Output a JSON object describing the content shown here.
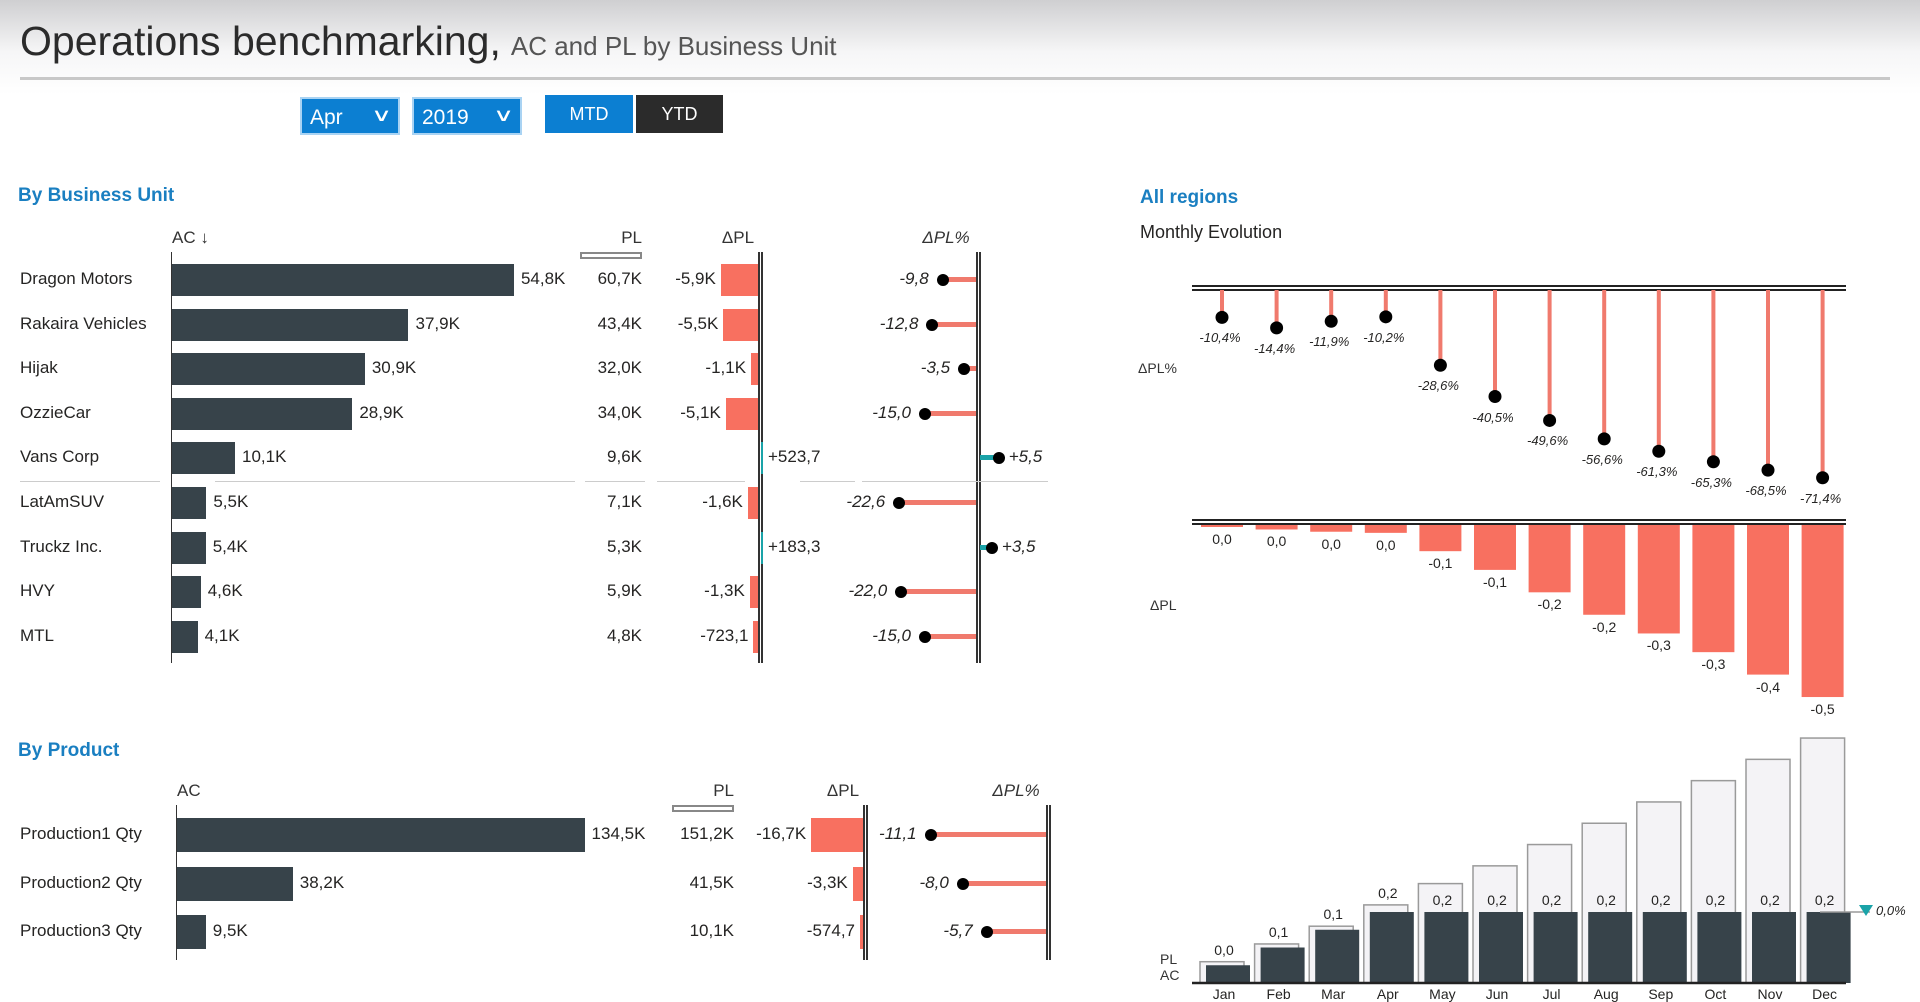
{
  "header": {
    "title": "Operations benchmarking,",
    "subtitle": "AC and PL by Business Unit"
  },
  "filters": {
    "month": {
      "value": "Apr",
      "icon": "chevron-down-icon"
    },
    "year": {
      "value": "2019",
      "icon": "chevron-down-icon"
    },
    "mtd_label": "MTD",
    "ytd_label": "YTD",
    "selected": "YTD"
  },
  "colors": {
    "accent": "#0c7fd2",
    "ac_bar": "#37434a",
    "negative": "#f87060",
    "positive": "#1aa3a8",
    "heading": "#1a7fc1"
  },
  "business_units": {
    "heading": "By Business Unit",
    "columns": {
      "ac": "AC ↓",
      "pl": "PL",
      "dpl": "ΔPL",
      "dplp": "ΔPL%"
    },
    "rows": [
      {
        "name": "Dragon Motors",
        "ac_label": "54,8K",
        "ac": 54.8,
        "pl_label": "60,7K",
        "dpl_label": "-5,9K",
        "dpl": -5.9,
        "dplp_label": "-9,8",
        "dplp": -9.8
      },
      {
        "name": "Rakaira Vehicles",
        "ac_label": "37,9K",
        "ac": 37.9,
        "pl_label": "43,4K",
        "dpl_label": "-5,5K",
        "dpl": -5.5,
        "dplp_label": "-12,8",
        "dplp": -12.8
      },
      {
        "name": "Hijak",
        "ac_label": "30,9K",
        "ac": 30.9,
        "pl_label": "32,0K",
        "dpl_label": "-1,1K",
        "dpl": -1.1,
        "dplp_label": "-3,5",
        "dplp": -3.5
      },
      {
        "name": "OzzieCar",
        "ac_label": "28,9K",
        "ac": 28.9,
        "pl_label": "34,0K",
        "dpl_label": "-5,1K",
        "dpl": -5.1,
        "dplp_label": "-15,0",
        "dplp": -15.0
      },
      {
        "name": "Vans Corp",
        "ac_label": "10,1K",
        "ac": 10.1,
        "pl_label": "9,6K",
        "dpl_label": "+523,7",
        "dpl": 0.5237,
        "dplp_label": "+5,5",
        "dplp": 5.5
      },
      {
        "name": "LatAmSUV",
        "ac_label": "5,5K",
        "ac": 5.5,
        "pl_label": "7,1K",
        "dpl_label": "-1,6K",
        "dpl": -1.6,
        "dplp_label": "-22,6",
        "dplp": -22.6
      },
      {
        "name": "Truckz Inc.",
        "ac_label": "5,4K",
        "ac": 5.4,
        "pl_label": "5,3K",
        "dpl_label": "+183,3",
        "dpl": 0.1833,
        "dplp_label": "+3,5",
        "dplp": 3.5
      },
      {
        "name": "HVY",
        "ac_label": "4,6K",
        "ac": 4.6,
        "pl_label": "5,9K",
        "dpl_label": "-1,3K",
        "dpl": -1.3,
        "dplp_label": "-22,0",
        "dplp": -22.0
      },
      {
        "name": "MTL",
        "ac_label": "4,1K",
        "ac": 4.1,
        "pl_label": "4,8K",
        "dpl_label": "-723,1",
        "dpl": -0.7231,
        "dplp_label": "-15,0",
        "dplp": -15.0
      }
    ]
  },
  "products": {
    "heading": "By Product",
    "columns": {
      "ac": "AC",
      "pl": "PL",
      "dpl": "ΔPL",
      "dplp": "ΔPL%"
    },
    "rows": [
      {
        "name": "Production1 Qty",
        "ac_label": "134,5K",
        "ac": 134.5,
        "pl_label": "151,2K",
        "dpl_label": "-16,7K",
        "dpl": -16.7,
        "dplp_label": "-11,1",
        "dplp": -11.1
      },
      {
        "name": "Production2 Qty",
        "ac_label": "38,2K",
        "ac": 38.2,
        "pl_label": "41,5K",
        "dpl_label": "-3,3K",
        "dpl": -3.3,
        "dplp_label": "-8,0",
        "dplp": -8.0
      },
      {
        "name": "Production3 Qty",
        "ac_label": "9,5K",
        "ac": 9.5,
        "pl_label": "10,1K",
        "dpl_label": "-574,7",
        "dpl": -0.5747,
        "dplp_label": "-5,7",
        "dplp": -5.7
      }
    ]
  },
  "regions": {
    "heading": "All regions",
    "subheading": "Monthly Evolution"
  },
  "chart_data": [
    {
      "type": "lollipop",
      "ylabel": "ΔPL%",
      "categories": [
        "Jan",
        "Feb",
        "Mar",
        "Apr",
        "May",
        "Jun",
        "Jul",
        "Aug",
        "Sep",
        "Oct",
        "Nov",
        "Dec"
      ],
      "values": [
        -10.4,
        -14.4,
        -11.9,
        -10.2,
        -28.6,
        -40.5,
        -49.6,
        -56.6,
        -61.3,
        -65.3,
        -68.5,
        -71.4
      ],
      "labels": [
        "-10,4%",
        "-14,4%",
        "-11,9%",
        "-10,2%",
        "-28,6%",
        "-40,5%",
        "-49,6%",
        "-56,6%",
        "-61,3%",
        "-65,3%",
        "-68,5%",
        "-71,4%"
      ]
    },
    {
      "type": "bar",
      "ylabel": "ΔPL",
      "categories": [
        "Jan",
        "Feb",
        "Mar",
        "Apr",
        "May",
        "Jun",
        "Jul",
        "Aug",
        "Sep",
        "Oct",
        "Nov",
        "Dec"
      ],
      "values": [
        -0.005,
        -0.012,
        -0.018,
        -0.021,
        -0.07,
        -0.12,
        -0.18,
        -0.24,
        -0.29,
        -0.34,
        -0.4,
        -0.46
      ],
      "labels": [
        "0,0",
        "0,0",
        "0,0",
        "0,0",
        "-0,1",
        "-0,1",
        "-0,2",
        "-0,2",
        "-0,3",
        "-0,3",
        "-0,4",
        "-0,5"
      ]
    },
    {
      "type": "bar",
      "ylabel_pl": "PL",
      "ylabel_ac": "AC",
      "categories": [
        "Jan",
        "Feb",
        "Mar",
        "Apr",
        "May",
        "Jun",
        "Jul",
        "Aug",
        "Sep",
        "Oct",
        "Nov",
        "Dec"
      ],
      "series": [
        {
          "name": "AC",
          "values": [
            0.05,
            0.1,
            0.15,
            0.2,
            0.2,
            0.2,
            0.2,
            0.2,
            0.2,
            0.2,
            0.2,
            0.2
          ]
        },
        {
          "name": "PL",
          "values": [
            0.06,
            0.11,
            0.16,
            0.22,
            0.28,
            0.33,
            0.39,
            0.45,
            0.51,
            0.57,
            0.63,
            0.69
          ]
        }
      ],
      "labels": [
        "0,0",
        "0,1",
        "0,1",
        "0,2",
        "0,2",
        "0,2",
        "0,2",
        "0,2",
        "0,2",
        "0,2",
        "0,2",
        "0,2"
      ],
      "marker_label": "0,0%"
    }
  ]
}
